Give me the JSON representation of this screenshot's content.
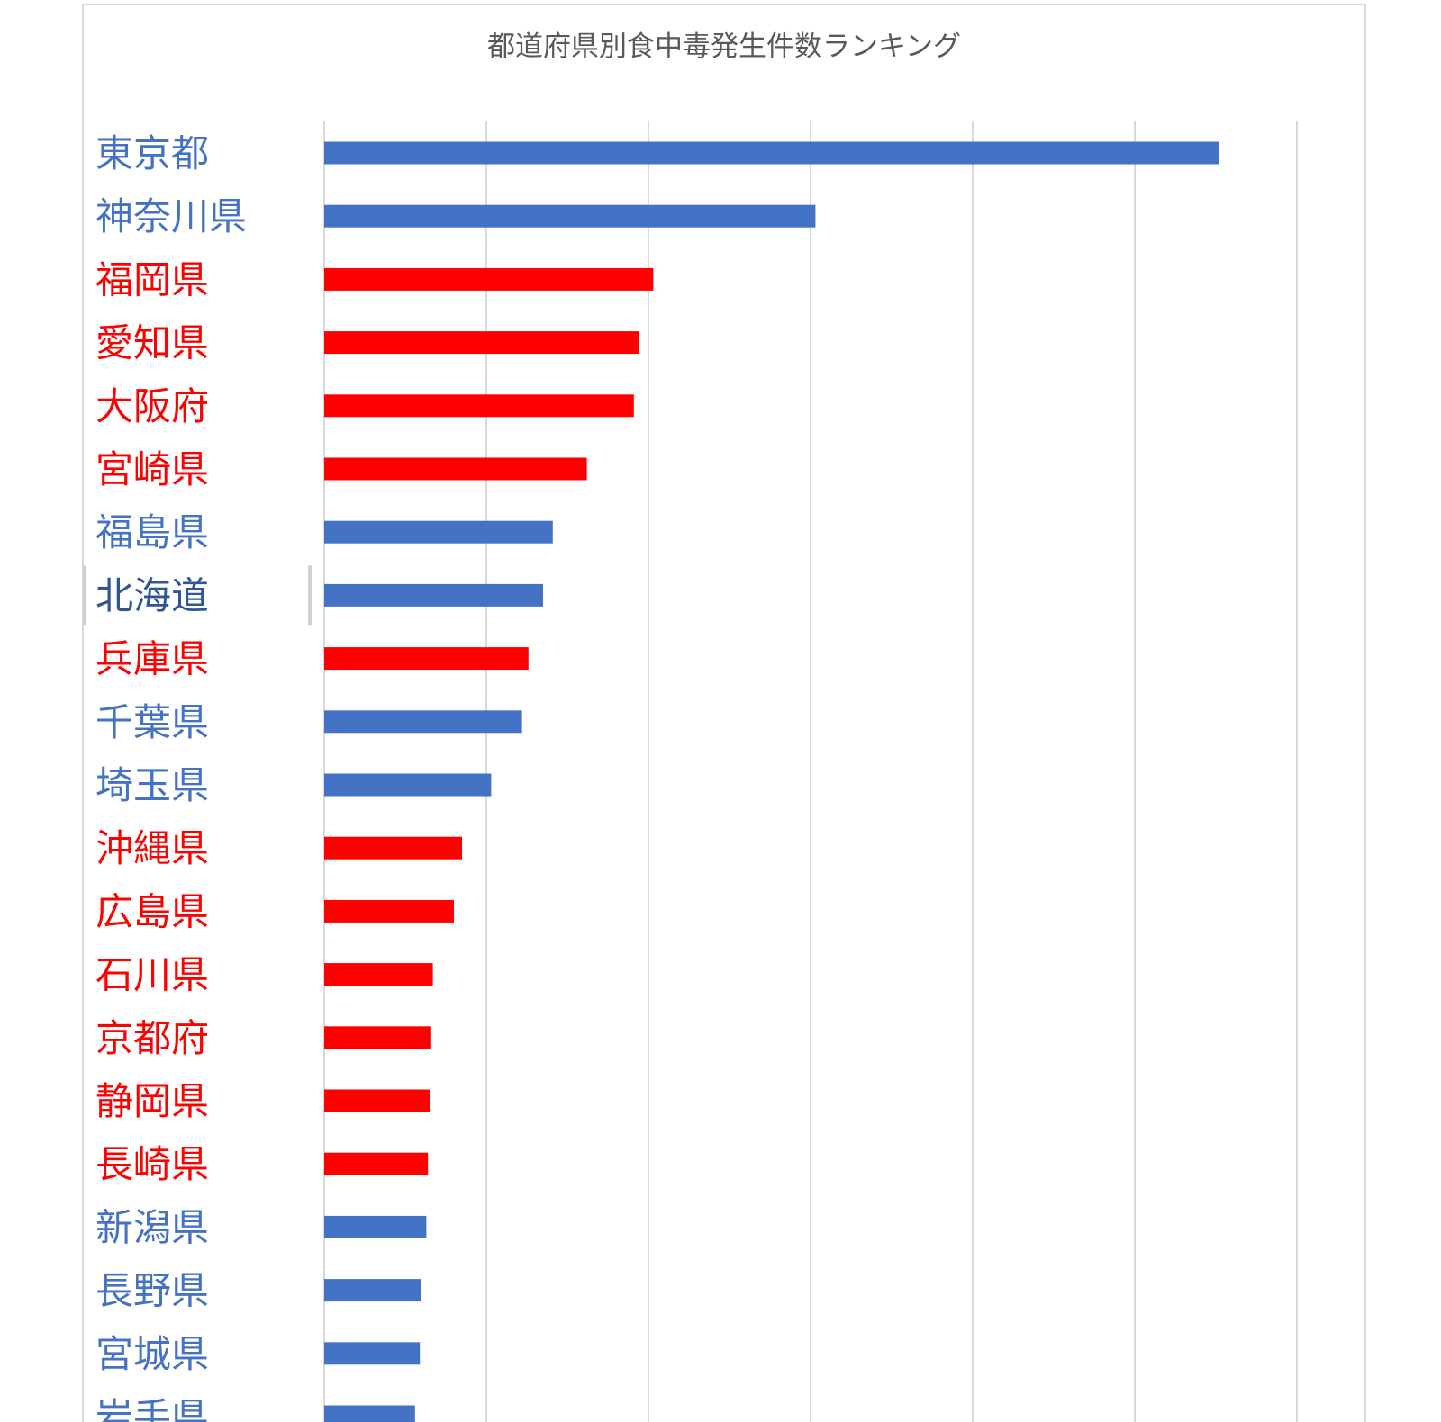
{
  "chart_data": {
    "type": "bar",
    "orientation": "horizontal",
    "title": "都道府県別食中毒発生件数ランキング",
    "xlabel": "",
    "ylabel": "",
    "value_units": "gridline intervals (no axis tick labels shown)",
    "xlim": [
      0,
      6
    ],
    "grid": true,
    "colors": {
      "blue": "#4472C4",
      "red": "#FF0000",
      "grid": "#D9D9D9",
      "title": "#595959"
    },
    "categories": [
      "東京都",
      "神奈川県",
      "福岡県",
      "愛知県",
      "大阪府",
      "宮崎県",
      "福島県",
      "北海道",
      "兵庫県",
      "千葉県",
      "埼玉県",
      "沖縄県",
      "広島県",
      "石川県",
      "京都府",
      "静岡県",
      "長崎県",
      "新潟県",
      "長野県",
      "宮城県",
      "岩手県"
    ],
    "values": [
      5.52,
      3.03,
      2.03,
      1.94,
      1.91,
      1.62,
      1.41,
      1.35,
      1.26,
      1.22,
      1.03,
      0.85,
      0.8,
      0.67,
      0.66,
      0.65,
      0.64,
      0.63,
      0.6,
      0.59,
      0.56
    ],
    "bar_colors": [
      "blue",
      "blue",
      "red",
      "red",
      "red",
      "red",
      "blue",
      "blue",
      "red",
      "blue",
      "blue",
      "red",
      "red",
      "red",
      "red",
      "red",
      "red",
      "blue",
      "blue",
      "blue",
      "blue"
    ],
    "selected_category": "北海道"
  }
}
